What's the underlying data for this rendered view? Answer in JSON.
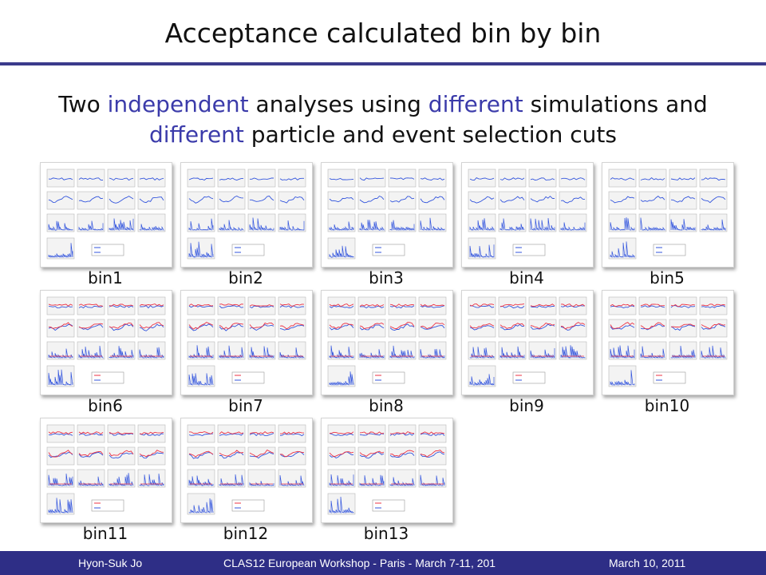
{
  "slide": {
    "title": "Acceptance calculated bin by bin",
    "subtitle": [
      {
        "text": "Two ",
        "hl": false
      },
      {
        "text": "independent",
        "hl": true
      },
      {
        "text": " analyses using ",
        "hl": false
      },
      {
        "text": "different",
        "hl": true
      },
      {
        "text": " simulations and ",
        "hl": false
      },
      {
        "text": "different",
        "hl": true
      },
      {
        "text": " particle and event selection cuts",
        "hl": false
      }
    ],
    "colors": {
      "highlight": "#3b3baa",
      "footer_bg": "#2e2e86",
      "rule": "#3a3a8c",
      "series_blue": "#3355dd",
      "series_red": "#ee3344"
    },
    "bins": [
      {
        "label": "bin1"
      },
      {
        "label": "bin2"
      },
      {
        "label": "bin3"
      },
      {
        "label": "bin4"
      },
      {
        "label": "bin5"
      },
      {
        "label": "bin6"
      },
      {
        "label": "bin7"
      },
      {
        "label": "bin8"
      },
      {
        "label": "bin9"
      },
      {
        "label": "bin10"
      },
      {
        "label": "bin11"
      },
      {
        "label": "bin12"
      },
      {
        "label": "bin13"
      }
    ]
  },
  "footer": {
    "author": "Hyon-Suk Jo",
    "event": "CLAS12 European Workshop - Paris - March 7-11, 201",
    "date": "March 10, 2011"
  }
}
